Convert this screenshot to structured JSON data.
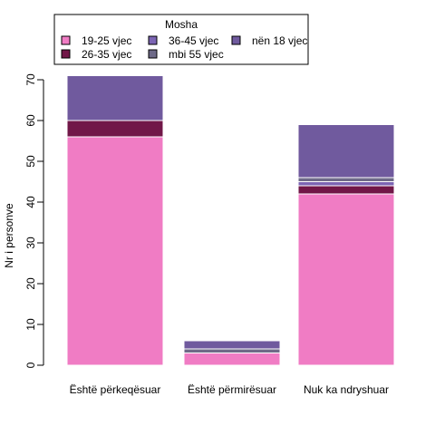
{
  "chart_data": {
    "type": "bar",
    "stacked": true,
    "title": "",
    "xlabel": "",
    "ylabel": "Nr i personve",
    "ylim": [
      0,
      72
    ],
    "yticks": [
      0,
      10,
      20,
      30,
      40,
      50,
      60,
      70
    ],
    "categories": [
      "Është përkeqësuar",
      "Është përmirësuar",
      "Nuk ka ndryshuar"
    ],
    "series": [
      {
        "name": "19-25 vjec",
        "color": "#F07CC4",
        "values": [
          56,
          3,
          42
        ]
      },
      {
        "name": "26-35 vjec",
        "color": "#711748",
        "values": [
          4,
          0,
          2
        ]
      },
      {
        "name": "36-45 vjec",
        "color": "#7C65B4",
        "values": [
          0,
          0,
          1
        ]
      },
      {
        "name": "mbi 55 vjec",
        "color": "#6E6A88",
        "values": [
          0,
          1,
          1
        ]
      },
      {
        "name": "nën 18 vjec",
        "color": "#705A9E",
        "values": [
          11,
          2,
          13
        ]
      }
    ],
    "grid": false,
    "bar_border": "#ffffff",
    "legend": {
      "title": "Mosha",
      "position": "top",
      "order": [
        "19-25 vjec",
        "36-45 vjec",
        "nën 18 vjec",
        "26-35 vjec",
        "mbi 55 vjec"
      ]
    }
  }
}
